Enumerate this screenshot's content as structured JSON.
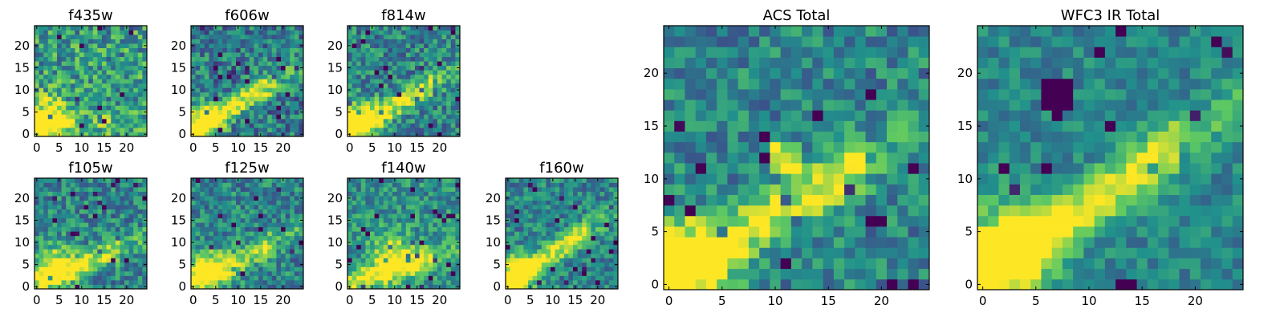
{
  "colormap": {
    "name": "viridis",
    "stops": [
      "#440154",
      "#3b528b",
      "#21918c",
      "#5ec962",
      "#fde725"
    ]
  },
  "chart_data": [
    {
      "type": "heatmap",
      "title": "f435w",
      "size": 25,
      "xticks": [
        "0",
        "5",
        "10",
        "15",
        "20"
      ],
      "yticks": [
        "0",
        "5",
        "10",
        "15",
        "20"
      ],
      "xlim": [
        0,
        25
      ],
      "ylim": [
        0,
        25
      ],
      "feature": {
        "blob": [
          2,
          3,
          1.2
        ],
        "ridge": [
          0.3,
          0.28,
          4,
          0.15
        ],
        "noise": 0.28,
        "seed": 11,
        "base": 0.55
      }
    },
    {
      "type": "heatmap",
      "title": "f606w",
      "size": 25,
      "xticks": [
        "0",
        "5",
        "10",
        "15",
        "20"
      ],
      "yticks": [
        "0",
        "5",
        "10",
        "15",
        "20"
      ],
      "xlim": [
        0,
        25
      ],
      "ylim": [
        0,
        25
      ],
      "feature": {
        "blob": [
          2,
          3,
          0.9
        ],
        "ridge": [
          0.9,
          0.5,
          3.5,
          0.55
        ],
        "noise": 0.25,
        "seed": 23,
        "base": 0.42
      }
    },
    {
      "type": "heatmap",
      "title": "f814w",
      "size": 25,
      "xticks": [
        "0",
        "5",
        "10",
        "15",
        "20"
      ],
      "yticks": [
        "0",
        "5",
        "10",
        "15",
        "20"
      ],
      "xlim": [
        0,
        25
      ],
      "ylim": [
        0,
        25
      ],
      "feature": {
        "blob": [
          2,
          3,
          1.0
        ],
        "ridge": [
          0.85,
          0.5,
          4,
          0.5
        ],
        "noise": 0.24,
        "seed": 37,
        "base": 0.45
      }
    },
    {
      "type": "heatmap",
      "title": "f105w",
      "size": 25,
      "xticks": [
        "0",
        "5",
        "10",
        "15",
        "20"
      ],
      "yticks": [
        "0",
        "5",
        "10",
        "15",
        "20"
      ],
      "xlim": [
        0,
        25
      ],
      "ylim": [
        0,
        25
      ],
      "feature": {
        "blob": [
          4,
          5,
          0.9
        ],
        "ridge": [
          0.7,
          0.45,
          4,
          0.45
        ],
        "noise": 0.22,
        "seed": 41,
        "base": 0.45
      }
    },
    {
      "type": "heatmap",
      "title": "f125w",
      "size": 25,
      "xticks": [
        "0",
        "5",
        "10",
        "15",
        "20"
      ],
      "yticks": [
        "0",
        "5",
        "10",
        "15",
        "20"
      ],
      "xlim": [
        0,
        25
      ],
      "ylim": [
        0,
        25
      ],
      "feature": {
        "blob": [
          3,
          4,
          0.9
        ],
        "ridge": [
          0.75,
          0.5,
          4,
          0.45
        ],
        "noise": 0.22,
        "seed": 53,
        "base": 0.45
      }
    },
    {
      "type": "heatmap",
      "title": "f140w",
      "size": 25,
      "xticks": [
        "0",
        "5",
        "10",
        "15",
        "20"
      ],
      "yticks": [
        "0",
        "5",
        "10",
        "15",
        "20"
      ],
      "xlim": [
        0,
        25
      ],
      "ylim": [
        0,
        25
      ],
      "feature": {
        "blob": [
          9,
          8,
          0.8
        ],
        "ridge": [
          0.6,
          0.4,
          4,
          0.5
        ],
        "noise": 0.2,
        "seed": 67,
        "base": 0.5
      }
    },
    {
      "type": "heatmap",
      "title": "f160w",
      "size": 25,
      "xticks": [
        "0",
        "5",
        "10",
        "15",
        "20"
      ],
      "yticks": [
        "0",
        "5",
        "10",
        "15",
        "20"
      ],
      "xlim": [
        0,
        25
      ],
      "ylim": [
        0,
        25
      ],
      "feature": {
        "blob": [
          2,
          3,
          1.0
        ],
        "ridge": [
          0.9,
          0.55,
          4,
          0.5
        ],
        "noise": 0.2,
        "seed": 71,
        "base": 0.45
      }
    },
    {
      "type": "heatmap",
      "title": "ACS Total",
      "size": 25,
      "xticks": [
        "0",
        "5",
        "10",
        "15",
        "20"
      ],
      "yticks": [
        "0",
        "5",
        "10",
        "15",
        "20"
      ],
      "xlim": [
        0,
        25
      ],
      "ylim": [
        0,
        25
      ],
      "feature": {
        "blob": [
          1,
          2,
          1.1
        ],
        "ridge": [
          0.85,
          0.5,
          3.5,
          0.5
        ],
        "noise": 0.2,
        "seed": 83,
        "base": 0.45,
        "hot": [
          11,
          12
        ]
      }
    },
    {
      "type": "heatmap",
      "title": "WFC3 IR Total",
      "size": 25,
      "xticks": [
        "0",
        "5",
        "10",
        "15",
        "20"
      ],
      "yticks": [
        "0",
        "5",
        "10",
        "15",
        "20"
      ],
      "xlim": [
        0,
        25
      ],
      "ylim": [
        0,
        25
      ],
      "feature": {
        "blob": [
          2,
          3,
          1.1
        ],
        "ridge": [
          0.9,
          0.55,
          3,
          0.55
        ],
        "noise": 0.14,
        "seed": 97,
        "base": 0.45,
        "cold": [
          7,
          18
        ]
      }
    }
  ]
}
